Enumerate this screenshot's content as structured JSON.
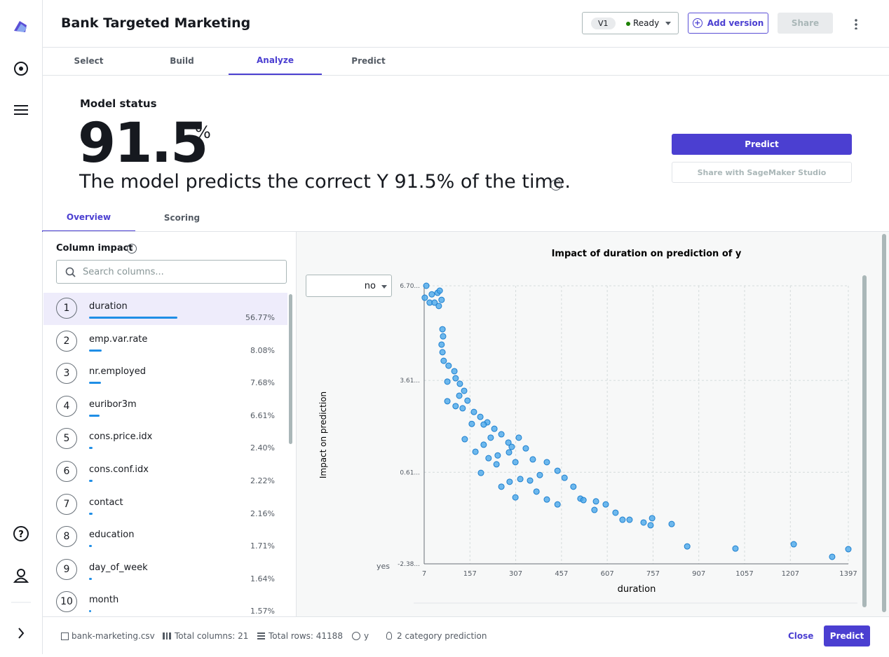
{
  "header": {
    "title": "Bank Targeted Marketing",
    "version": "V1",
    "status": "Ready",
    "add_version": "Add version",
    "share": "Share"
  },
  "tabs": [
    "Select",
    "Build",
    "Analyze",
    "Predict"
  ],
  "model_status": {
    "heading": "Model status",
    "score": "91.5",
    "unit": "%",
    "description": "The model predicts the correct Y 91.5% of the time.",
    "predict": "Predict",
    "share_studio": "Share with SageMaker Studio"
  },
  "subtabs": [
    "Overview",
    "Scoring"
  ],
  "column_impact": {
    "title": "Column impact",
    "search_placeholder": "Search columns...",
    "rows": [
      {
        "rank": 1,
        "name": "duration",
        "impact": 56.77,
        "impact_label": "56.77%"
      },
      {
        "rank": 2,
        "name": "emp.var.rate",
        "impact": 8.08,
        "impact_label": "8.08%"
      },
      {
        "rank": 3,
        "name": "nr.employed",
        "impact": 7.68,
        "impact_label": "7.68%"
      },
      {
        "rank": 4,
        "name": "euribor3m",
        "impact": 6.61,
        "impact_label": "6.61%"
      },
      {
        "rank": 5,
        "name": "cons.price.idx",
        "impact": 2.4,
        "impact_label": "2.40%"
      },
      {
        "rank": 6,
        "name": "cons.conf.idx",
        "impact": 2.22,
        "impact_label": "2.22%"
      },
      {
        "rank": 7,
        "name": "contact",
        "impact": 2.16,
        "impact_label": "2.16%"
      },
      {
        "rank": 8,
        "name": "education",
        "impact": 1.71,
        "impact_label": "1.71%"
      },
      {
        "rank": 9,
        "name": "day_of_week",
        "impact": 1.64,
        "impact_label": "1.64%"
      },
      {
        "rank": 10,
        "name": "month",
        "impact": 1.57,
        "impact_label": "1.57%"
      }
    ]
  },
  "chart_data": {
    "type": "scatter",
    "title": "Impact of duration on prediction of y",
    "x_label": "duration",
    "y_label": "Impact on prediction",
    "class_selector": "no",
    "y_min_label": "yes",
    "color": "#4aa8ea",
    "xlim": [
      7,
      1397
    ],
    "xticks": [
      7,
      157,
      307,
      457,
      607,
      757,
      907,
      1057,
      1207,
      1397
    ],
    "ylim": [
      -2.38,
      6.7
    ],
    "yticks": [
      {
        "value": -2.38,
        "label": "-2.38..."
      },
      {
        "value": 0.61,
        "label": "0.61..."
      },
      {
        "value": 3.61,
        "label": "3.61..."
      },
      {
        "value": 6.7,
        "label": "6.70..."
      }
    ],
    "grid": true,
    "x": [
      14,
      9,
      25,
      32,
      41,
      51,
      58,
      55,
      64,
      67,
      69,
      64,
      67,
      71,
      87,
      106,
      110,
      83,
      124,
      138,
      122,
      83,
      149,
      110,
      133,
      170,
      191,
      214,
      237,
      260,
      283,
      163,
      202,
      140,
      175,
      202,
      248,
      294,
      317,
      340,
      306,
      363,
      409,
      444,
      467,
      496,
      519,
      570,
      602,
      634,
      657,
      680,
      726,
      754,
      749,
      818,
      869,
      1027,
      1218,
      1344,
      1397,
      193,
      218,
      244,
      260,
      287,
      322,
      354,
      306,
      375,
      409,
      444,
      386,
      529,
      565,
      285,
      225
    ],
    "values": [
      6.7,
      6.31,
      6.15,
      6.42,
      6.15,
      6.47,
      6.54,
      6.04,
      6.24,
      5.28,
      5.05,
      4.78,
      4.53,
      4.25,
      4.09,
      3.91,
      3.68,
      3.57,
      3.5,
      3.27,
      3.11,
      2.93,
      2.95,
      2.77,
      2.7,
      2.58,
      2.42,
      2.24,
      2.03,
      1.85,
      1.58,
      2.19,
      2.17,
      1.69,
      1.28,
      1.51,
      1.16,
      1.44,
      1.74,
      1.39,
      0.94,
      1.03,
      0.94,
      0.66,
      0.43,
      0.14,
      -0.25,
      -0.34,
      -0.44,
      -0.71,
      -0.94,
      -0.94,
      -1.03,
      -0.89,
      -1.12,
      -1.08,
      -1.81,
      -1.88,
      -1.74,
      -2.15,
      -1.9,
      0.59,
      1.07,
      0.87,
      0.14,
      0.3,
      0.39,
      0.34,
      -0.21,
      -0.02,
      -0.28,
      -0.44,
      0.52,
      -0.3,
      -0.62,
      1.26,
      1.74
    ]
  },
  "footer": {
    "file": "bank-marketing.csv",
    "total_columns": "Total columns: 21",
    "total_rows": "Total rows: 41188",
    "target": "y",
    "prediction_type": "2 category prediction",
    "close": "Close",
    "predict": "Predict"
  }
}
